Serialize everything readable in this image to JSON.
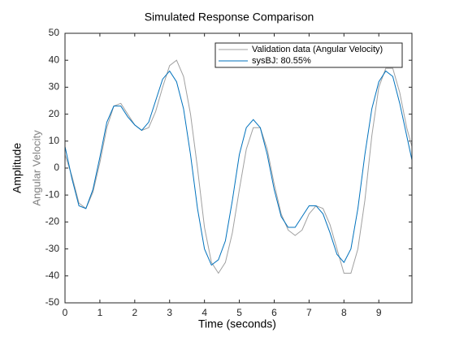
{
  "chart_data": {
    "type": "line",
    "title": "Simulated Response Comparison",
    "x_label": "Time (seconds)",
    "y_label": "Amplitude",
    "y_sublabel": "Angular Velocity",
    "x": [
      0,
      0.2,
      0.4,
      0.6,
      0.8,
      1.0,
      1.2,
      1.4,
      1.6,
      1.8,
      2.0,
      2.2,
      2.4,
      2.6,
      2.8,
      3.0,
      3.2,
      3.4,
      3.6,
      3.8,
      4.0,
      4.2,
      4.4,
      4.6,
      4.8,
      5.0,
      5.2,
      5.4,
      5.6,
      5.8,
      6.0,
      6.2,
      6.4,
      6.6,
      6.8,
      7.0,
      7.2,
      7.4,
      7.6,
      7.8,
      8.0,
      8.2,
      8.4,
      8.6,
      8.8,
      9.0,
      9.2,
      9.4,
      9.6,
      9.8,
      9.95
    ],
    "series": [
      {
        "name": "Validation data (Angular Velocity)",
        "color": "#a0a0a0",
        "values": [
          5,
          -3,
          -13,
          -15,
          -9,
          2,
          15,
          23,
          24,
          20,
          16,
          14,
          15,
          21,
          30,
          38,
          40,
          34,
          20,
          0,
          -22,
          -35,
          -39,
          -35,
          -24,
          -8,
          7,
          15,
          15,
          7,
          -6,
          -17,
          -23,
          -25,
          -23,
          -17,
          -14,
          -15,
          -21,
          -30,
          -39,
          -39,
          -30,
          -12,
          12,
          30,
          37,
          37,
          28,
          15,
          8
        ]
      },
      {
        "name": "sysBJ: 80.55%",
        "color": "#0072bd",
        "values": [
          8,
          -4,
          -14,
          -15,
          -8,
          4,
          17,
          23,
          23,
          19,
          16,
          14,
          17,
          25,
          33,
          36,
          32,
          22,
          5,
          -15,
          -30,
          -36,
          -34,
          -27,
          -12,
          5,
          15,
          18,
          15,
          5,
          -8,
          -18,
          -22,
          -22,
          -18,
          -14,
          -14,
          -17,
          -24,
          -32,
          -35,
          -30,
          -15,
          5,
          22,
          32,
          36,
          34,
          24,
          12,
          3
        ]
      }
    ],
    "xlim": [
      0,
      9.95
    ],
    "ylim": [
      -50,
      50
    ],
    "xticks": [
      0,
      1,
      2,
      3,
      4,
      5,
      6,
      7,
      8,
      9
    ],
    "yticks": [
      -50,
      -40,
      -30,
      -20,
      -10,
      0,
      10,
      20,
      30,
      40,
      50
    ],
    "legend": "northeast"
  }
}
